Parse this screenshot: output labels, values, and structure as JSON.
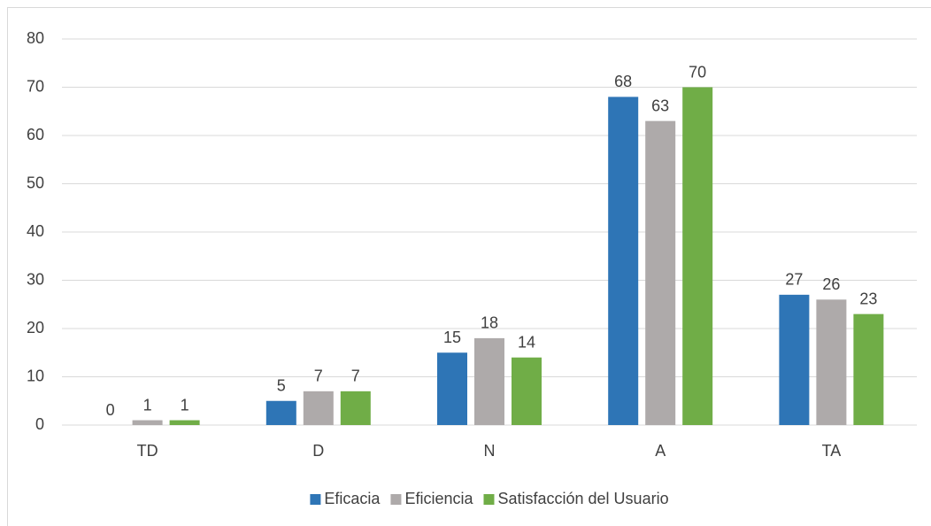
{
  "chart_data": {
    "type": "bar",
    "categories": [
      "TD",
      "D",
      "N",
      "A",
      "TA"
    ],
    "series": [
      {
        "name": "Eficacia",
        "color": "#2e75b6",
        "values": [
          0,
          5,
          15,
          68,
          27
        ]
      },
      {
        "name": "Eficiencia",
        "color": "#aeaaaa",
        "values": [
          1,
          7,
          18,
          63,
          26
        ]
      },
      {
        "name": "Satisfacción del Usuario",
        "color": "#70ad47",
        "values": [
          1,
          7,
          14,
          70,
          23
        ]
      }
    ],
    "ylim": [
      0,
      80
    ],
    "yticks": [
      0,
      10,
      20,
      30,
      40,
      50,
      60,
      70,
      80
    ],
    "grid": true,
    "legend": "bottom"
  }
}
